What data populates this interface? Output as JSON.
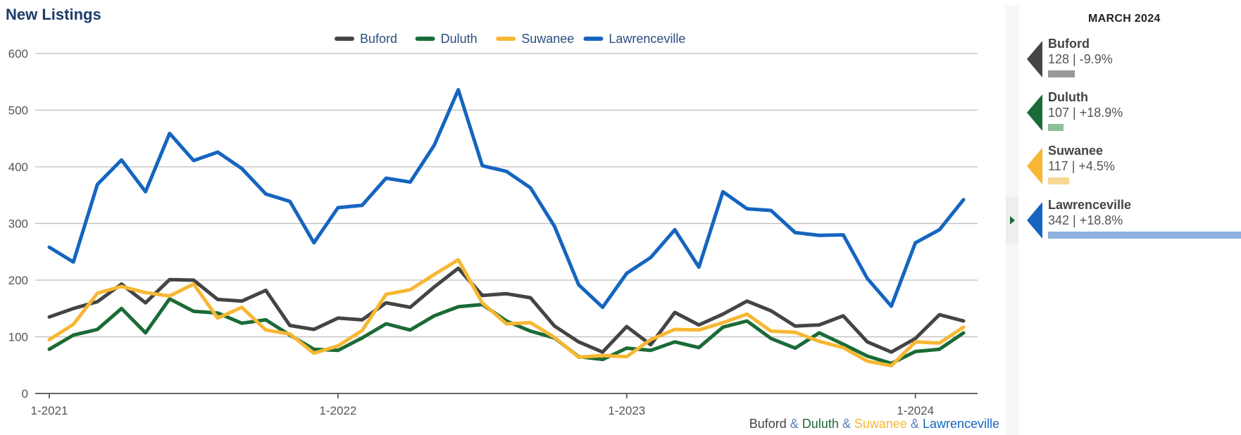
{
  "title": "New Listings",
  "panel": {
    "header": "MARCH 2024",
    "items": [
      {
        "name": "Buford",
        "value": "128",
        "change": "-9.9%",
        "color": "#444444",
        "bar_color": "#999999",
        "bar_fraction": 0.14
      },
      {
        "name": "Duluth",
        "value": "107",
        "change": "+18.9%",
        "color": "#1a6b37",
        "bar_color": "#8cbf9a",
        "bar_fraction": 0.08
      },
      {
        "name": "Suwanee",
        "value": "117",
        "change": "+4.5%",
        "color": "#f7b733",
        "bar_color": "#f8d794",
        "bar_fraction": 0.11
      },
      {
        "name": "Lawrenceville",
        "value": "342",
        "change": "+18.8%",
        "color": "#1565c0",
        "bar_color": "#8fb2e0",
        "bar_fraction": 1.0
      }
    ]
  },
  "footer": {
    "parts": [
      {
        "text": "Buford",
        "color": "#444444"
      },
      {
        "text": " & ",
        "color": "#5b7fb8"
      },
      {
        "text": "Duluth",
        "color": "#1a6b37"
      },
      {
        "text": " & ",
        "color": "#5b7fb8"
      },
      {
        "text": "Suwanee",
        "color": "#f7b733"
      },
      {
        "text": " & ",
        "color": "#5b7fb8"
      },
      {
        "text": "Lawrenceville",
        "color": "#1565c0"
      }
    ]
  },
  "chart_data": {
    "type": "line",
    "x_tick_labels": [
      "1-2021",
      "1-2022",
      "1-2023",
      "1-2024"
    ],
    "x": [
      "2021-01",
      "2021-02",
      "2021-03",
      "2021-04",
      "2021-05",
      "2021-06",
      "2021-07",
      "2021-08",
      "2021-09",
      "2021-10",
      "2021-11",
      "2021-12",
      "2022-01",
      "2022-02",
      "2022-03",
      "2022-04",
      "2022-05",
      "2022-06",
      "2022-07",
      "2022-08",
      "2022-09",
      "2022-10",
      "2022-11",
      "2022-12",
      "2023-01",
      "2023-02",
      "2023-03",
      "2023-04",
      "2023-05",
      "2023-06",
      "2023-07",
      "2023-08",
      "2023-09",
      "2023-10",
      "2023-11",
      "2023-12",
      "2024-01",
      "2024-02",
      "2024-03"
    ],
    "ylim": [
      0,
      600
    ],
    "y_ticks": [
      0,
      100,
      200,
      300,
      400,
      500,
      600
    ],
    "grid": true,
    "legend": "top-center",
    "series": [
      {
        "name": "Buford",
        "color": "#444444",
        "values": [
          135,
          150,
          162,
          193,
          160,
          201,
          200,
          166,
          163,
          182,
          120,
          113,
          133,
          130,
          160,
          152,
          188,
          221,
          173,
          176,
          169,
          119,
          91,
          73,
          118,
          86,
          143,
          121,
          140,
          163,
          146,
          119,
          121,
          137,
          91,
          73,
          97,
          139,
          128
        ]
      },
      {
        "name": "Duluth",
        "color": "#1a6b37",
        "values": [
          78,
          103,
          113,
          150,
          107,
          167,
          145,
          142,
          124,
          130,
          103,
          78,
          76,
          98,
          123,
          112,
          137,
          153,
          157,
          128,
          110,
          98,
          65,
          60,
          80,
          76,
          91,
          81,
          117,
          128,
          97,
          80,
          107,
          87,
          66,
          53,
          74,
          78,
          107
        ]
      },
      {
        "name": "Suwanee",
        "color": "#f7b733",
        "values": [
          95,
          122,
          177,
          189,
          178,
          172,
          193,
          133,
          152,
          112,
          105,
          71,
          84,
          111,
          175,
          183,
          210,
          236,
          160,
          123,
          125,
          99,
          64,
          67,
          65,
          95,
          113,
          112,
          125,
          140,
          110,
          108,
          92,
          81,
          57,
          49,
          91,
          89,
          117
        ]
      },
      {
        "name": "Lawrenceville",
        "color": "#1565c0",
        "values": [
          258,
          232,
          369,
          412,
          356,
          459,
          411,
          426,
          397,
          352,
          339,
          266,
          328,
          332,
          380,
          373,
          438,
          536,
          402,
          392,
          363,
          295,
          192,
          152,
          212,
          240,
          289,
          223,
          356,
          326,
          323,
          284,
          279,
          280,
          203,
          154,
          266,
          289,
          342
        ]
      }
    ]
  }
}
